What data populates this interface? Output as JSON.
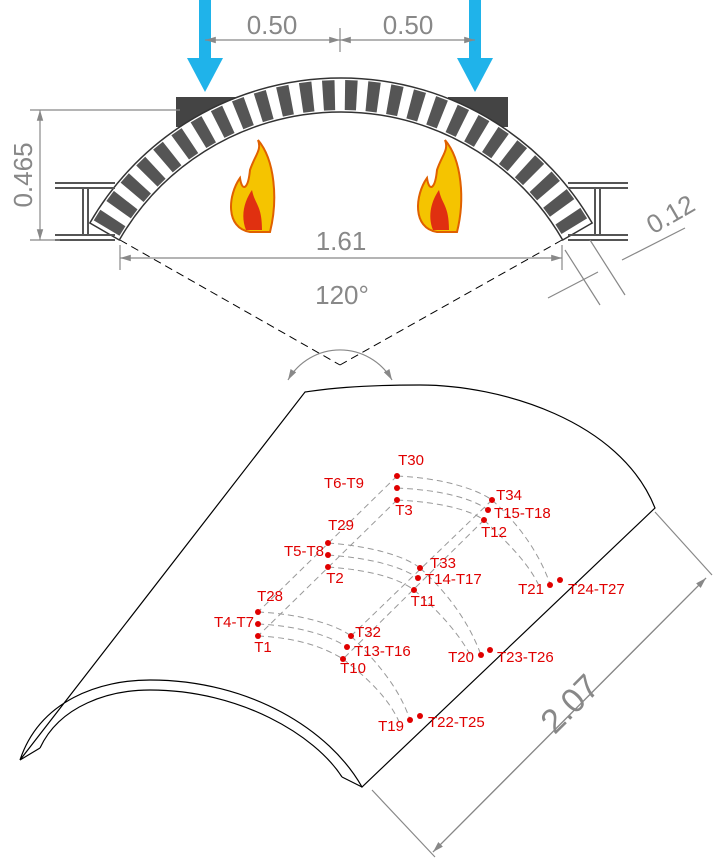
{
  "dimensions": {
    "load_spacing_left": "0.50",
    "load_spacing_right": "0.50",
    "rise": "0.465",
    "plate_thickness": "0.12",
    "span": "1.61",
    "angle": "120°",
    "length": "2.07"
  },
  "sensors": [
    "T30",
    "T6-T9",
    "T3",
    "T34",
    "T15-T18",
    "T12",
    "T29",
    "T5-T8",
    "T2",
    "T33",
    "T14-T17",
    "T11",
    "T28",
    "T4-T7",
    "T1",
    "T32",
    "T13-T16",
    "T10",
    "T21",
    "T24-T27",
    "T20",
    "T23-T26",
    "T19",
    "T22-T25"
  ]
}
